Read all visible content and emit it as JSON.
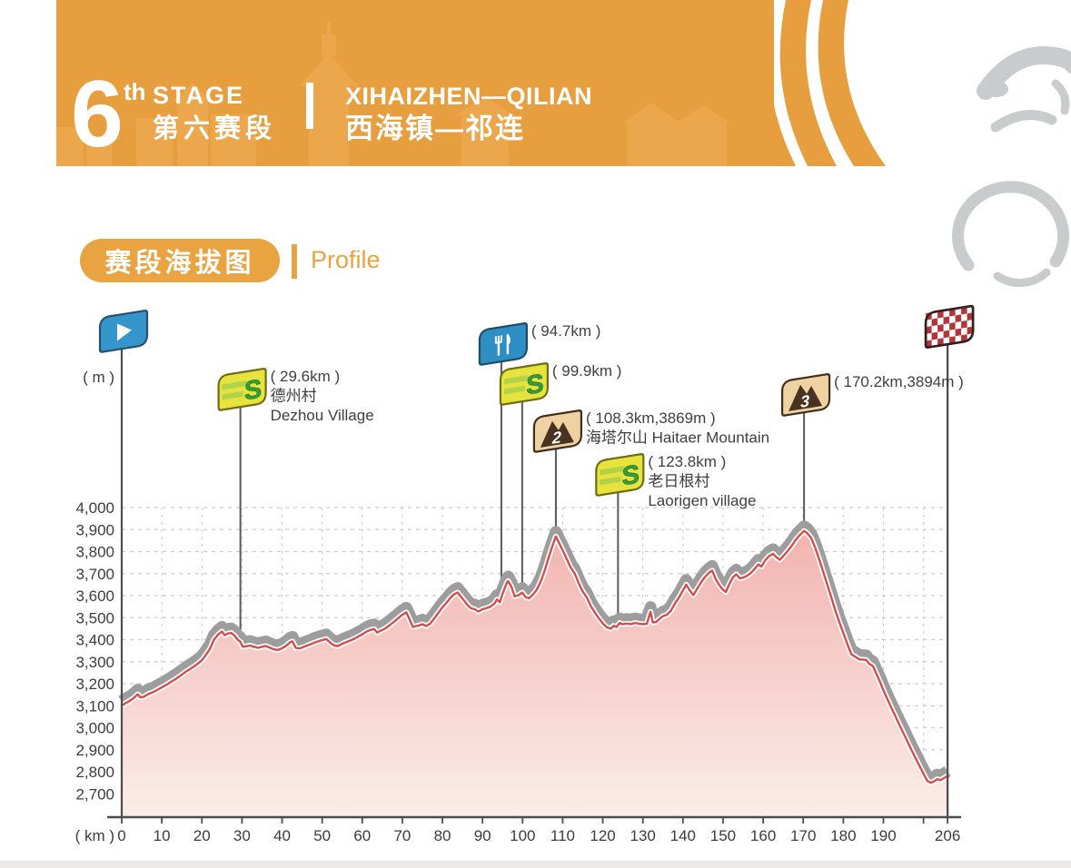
{
  "banner": {
    "stage_number": "6",
    "stage_ordinal_suffix": "th",
    "stage_word": "STAGE",
    "stage_cn": "第六赛段",
    "route_en": "XIHAIZHEN—QILIAN",
    "route_cn": "西海镇—祁连"
  },
  "section_header": {
    "title_cn": "赛段海拔图",
    "title_en": "Profile"
  },
  "chart_data": {
    "type": "area",
    "xlabel": "( km )",
    "ylabel": "( m )",
    "xlim": [
      0,
      206
    ],
    "ylim": [
      2700,
      4000
    ],
    "grid": "dashed",
    "x_tick_labels": [
      "0",
      "10",
      "20",
      "30",
      "40",
      "50",
      "60",
      "70",
      "80",
      "90",
      "100",
      "110",
      "120",
      "130",
      "140",
      "150",
      "160",
      "170",
      "180",
      "190",
      "206"
    ],
    "x_tick_values": [
      0,
      10,
      20,
      30,
      40,
      50,
      60,
      70,
      80,
      90,
      100,
      110,
      120,
      130,
      140,
      150,
      160,
      170,
      180,
      190,
      206
    ],
    "y_tick_labels": [
      "4,000",
      "3,900",
      "3,800",
      "3,700",
      "3,600",
      "3,500",
      "3,400",
      "3,300",
      "3,200",
      "3,100",
      "3,000",
      "2,900",
      "2,800",
      "2,700"
    ],
    "y_tick_values": [
      4000,
      3900,
      3800,
      3700,
      3600,
      3500,
      3400,
      3300,
      3200,
      3100,
      3000,
      2900,
      2800,
      2700
    ],
    "series": [
      {
        "name": "elevation_m",
        "points": [
          [
            0,
            3100
          ],
          [
            1,
            3112
          ],
          [
            2,
            3122
          ],
          [
            3,
            3135
          ],
          [
            4,
            3152
          ],
          [
            4.6,
            3138
          ],
          [
            5.5,
            3140
          ],
          [
            6.5,
            3152
          ],
          [
            8,
            3163
          ],
          [
            9,
            3173
          ],
          [
            10,
            3183
          ],
          [
            11,
            3193
          ],
          [
            12,
            3205
          ],
          [
            13,
            3216
          ],
          [
            14,
            3228
          ],
          [
            15,
            3241
          ],
          [
            16,
            3255
          ],
          [
            17,
            3266
          ],
          [
            18,
            3278
          ],
          [
            19,
            3291
          ],
          [
            20,
            3307
          ],
          [
            21,
            3331
          ],
          [
            22,
            3358
          ],
          [
            23,
            3400
          ],
          [
            24,
            3422
          ],
          [
            25,
            3437
          ],
          [
            25.7,
            3420
          ],
          [
            26.5,
            3428
          ],
          [
            27.3,
            3430
          ],
          [
            28,
            3421
          ],
          [
            29,
            3398
          ],
          [
            29.6,
            3390
          ],
          [
            30.2,
            3368
          ],
          [
            31,
            3370
          ],
          [
            32,
            3373
          ],
          [
            33,
            3368
          ],
          [
            34,
            3363
          ],
          [
            35,
            3368
          ],
          [
            36,
            3371
          ],
          [
            37,
            3363
          ],
          [
            38,
            3356
          ],
          [
            39,
            3353
          ],
          [
            40,
            3361
          ],
          [
            41,
            3372
          ],
          [
            42,
            3388
          ],
          [
            42.6,
            3392
          ],
          [
            43.4,
            3363
          ],
          [
            44.4,
            3360
          ],
          [
            45.5,
            3368
          ],
          [
            47,
            3378
          ],
          [
            48,
            3386
          ],
          [
            49,
            3392
          ],
          [
            50,
            3398
          ],
          [
            51,
            3403
          ],
          [
            52,
            3386
          ],
          [
            53,
            3373
          ],
          [
            54,
            3371
          ],
          [
            55,
            3381
          ],
          [
            56,
            3389
          ],
          [
            57,
            3396
          ],
          [
            58,
            3404
          ],
          [
            59,
            3414
          ],
          [
            60,
            3424
          ],
          [
            61,
            3436
          ],
          [
            62,
            3444
          ],
          [
            63,
            3448
          ],
          [
            63.7,
            3432
          ],
          [
            65,
            3444
          ],
          [
            66,
            3454
          ],
          [
            67,
            3468
          ],
          [
            68,
            3483
          ],
          [
            69,
            3498
          ],
          [
            70,
            3513
          ],
          [
            71,
            3524
          ],
          [
            71.8,
            3492
          ],
          [
            72.6,
            3458
          ],
          [
            74,
            3464
          ],
          [
            75,
            3470
          ],
          [
            76,
            3462
          ],
          [
            77,
            3474
          ],
          [
            78,
            3497
          ],
          [
            79,
            3522
          ],
          [
            80,
            3547
          ],
          [
            81,
            3567
          ],
          [
            82,
            3590
          ],
          [
            83,
            3607
          ],
          [
            83.8,
            3614
          ],
          [
            85,
            3587
          ],
          [
            86,
            3563
          ],
          [
            87,
            3544
          ],
          [
            88,
            3538
          ],
          [
            89,
            3528
          ],
          [
            90,
            3538
          ],
          [
            91,
            3543
          ],
          [
            92,
            3550
          ],
          [
            93,
            3564
          ],
          [
            93.6,
            3582
          ],
          [
            94.3,
            3570
          ],
          [
            95,
            3608
          ],
          [
            96,
            3656
          ],
          [
            96.4,
            3666
          ],
          [
            97.2,
            3640
          ],
          [
            98,
            3597
          ],
          [
            99,
            3602
          ],
          [
            99.9,
            3614
          ],
          [
            100.8,
            3592
          ],
          [
            101.6,
            3588
          ],
          [
            102.5,
            3603
          ],
          [
            103.5,
            3626
          ],
          [
            104.5,
            3663
          ],
          [
            105.5,
            3713
          ],
          [
            106.5,
            3773
          ],
          [
            107.3,
            3818
          ],
          [
            108.3,
            3869
          ],
          [
            109,
            3843
          ],
          [
            110,
            3806
          ],
          [
            111,
            3766
          ],
          [
            112,
            3727
          ],
          [
            113,
            3700
          ],
          [
            114,
            3656
          ],
          [
            115,
            3618
          ],
          [
            116,
            3592
          ],
          [
            117,
            3553
          ],
          [
            118,
            3524
          ],
          [
            119,
            3497
          ],
          [
            120,
            3474
          ],
          [
            121,
            3456
          ],
          [
            122,
            3450
          ],
          [
            122.7,
            3463
          ],
          [
            123.4,
            3457
          ],
          [
            124.2,
            3476
          ],
          [
            125,
            3470
          ],
          [
            126,
            3473
          ],
          [
            127,
            3470
          ],
          [
            128,
            3476
          ],
          [
            129,
            3472
          ],
          [
            130,
            3470
          ],
          [
            131,
            3472
          ],
          [
            131.9,
            3527
          ],
          [
            132.5,
            3478
          ],
          [
            133.3,
            3480
          ],
          [
            134,
            3492
          ],
          [
            135,
            3507
          ],
          [
            136,
            3513
          ],
          [
            137,
            3532
          ],
          [
            138,
            3564
          ],
          [
            139,
            3591
          ],
          [
            140,
            3624
          ],
          [
            140.8,
            3650
          ],
          [
            141.7,
            3624
          ],
          [
            142.6,
            3602
          ],
          [
            143.5,
            3630
          ],
          [
            144.5,
            3660
          ],
          [
            145.5,
            3685
          ],
          [
            146.5,
            3704
          ],
          [
            147.3,
            3714
          ],
          [
            148.2,
            3674
          ],
          [
            149,
            3649
          ],
          [
            150,
            3626
          ],
          [
            150.7,
            3617
          ],
          [
            151.5,
            3650
          ],
          [
            152.5,
            3684
          ],
          [
            153.3,
            3697
          ],
          [
            154.2,
            3678
          ],
          [
            155,
            3682
          ],
          [
            156,
            3690
          ],
          [
            157,
            3704
          ],
          [
            158,
            3724
          ],
          [
            158.8,
            3742
          ],
          [
            159.6,
            3732
          ],
          [
            160.5,
            3760
          ],
          [
            161.5,
            3780
          ],
          [
            162.5,
            3790
          ],
          [
            163.3,
            3774
          ],
          [
            164.2,
            3763
          ],
          [
            165,
            3780
          ],
          [
            166,
            3800
          ],
          [
            167,
            3823
          ],
          [
            168,
            3850
          ],
          [
            169,
            3872
          ],
          [
            170.2,
            3894
          ],
          [
            171,
            3884
          ],
          [
            172,
            3861
          ],
          [
            173,
            3816
          ],
          [
            174,
            3764
          ],
          [
            175,
            3707
          ],
          [
            176,
            3650
          ],
          [
            177,
            3592
          ],
          [
            178,
            3534
          ],
          [
            179,
            3480
          ],
          [
            180,
            3430
          ],
          [
            181,
            3380
          ],
          [
            182,
            3334
          ],
          [
            183,
            3322
          ],
          [
            184,
            3310
          ],
          [
            185.7,
            3308
          ],
          [
            186.5,
            3290
          ],
          [
            187.4,
            3280
          ],
          [
            188.3,
            3243
          ],
          [
            189.2,
            3206
          ],
          [
            190,
            3170
          ],
          [
            191,
            3130
          ],
          [
            192,
            3090
          ],
          [
            193,
            3052
          ],
          [
            194,
            3013
          ],
          [
            195,
            2975
          ],
          [
            196,
            2937
          ],
          [
            197,
            2899
          ],
          [
            198,
            2863
          ],
          [
            199,
            2827
          ],
          [
            200,
            2791
          ],
          [
            201,
            2758
          ],
          [
            201.8,
            2750
          ],
          [
            202.6,
            2756
          ],
          [
            203.4,
            2766
          ],
          [
            204.2,
            2762
          ],
          [
            205,
            2770
          ],
          [
            206,
            2782
          ]
        ]
      }
    ],
    "markers": [
      {
        "id": "start",
        "type": "start",
        "km": 0,
        "icon": "play-flag",
        "label_lines": []
      },
      {
        "id": "sprint-1",
        "type": "sprint",
        "km": 29.6,
        "icon": "sprint-flag",
        "label_lines": [
          "( 29.6km )",
          "德州村",
          "Dezhou Village"
        ]
      },
      {
        "id": "feed-zone",
        "type": "feed",
        "km": 94.7,
        "icon": "fork-knife-flag",
        "label_lines": [
          "( 94.7km )"
        ]
      },
      {
        "id": "sprint-2",
        "type": "sprint",
        "km": 99.9,
        "icon": "sprint-flag",
        "label_lines": [
          "( 99.9km )"
        ]
      },
      {
        "id": "climb-cat2",
        "type": "climb",
        "category": "2",
        "km": 108.3,
        "elevation_m": 3869,
        "icon": "mountain-flag",
        "label_lines": [
          "( 108.3km,3869m )",
          "海塔尔山 Haitaer Mountain"
        ]
      },
      {
        "id": "sprint-3",
        "type": "sprint",
        "km": 123.8,
        "icon": "sprint-flag",
        "label_lines": [
          "( 123.8km )",
          "老日根村",
          "Laorigen village"
        ]
      },
      {
        "id": "climb-cat3",
        "type": "climb",
        "category": "3",
        "km": 170.2,
        "elevation_m": 3894,
        "icon": "mountain-flag",
        "label_lines": [
          "( 170.2km,3894m )"
        ]
      },
      {
        "id": "finish",
        "type": "finish",
        "km": 206,
        "icon": "checkered-flag",
        "label_lines": []
      }
    ],
    "colors": {
      "banner_orange": "#E79E3E",
      "accent_orange": "#E9A340",
      "watermark_orange": "#F2AF58",
      "cyclist_gray": "#C9CCCD",
      "axis": "#4D4D4D",
      "grid": "#CBCBCB",
      "tick_text": "#3C3C3C",
      "label_text": "#3F3F3F",
      "profile_line": "#D64C4C",
      "profile_casing": "#FFFFFF",
      "profile_shadow": "#9D9D9D",
      "fill_top": "#F1AFAA",
      "fill_bottom": "#FBEDE9",
      "stem": "#5A5A5A",
      "start_flag_fill": "#3596CC",
      "start_flag_border": "#29506B",
      "feed_flag_fill": "#2E8FC4",
      "feed_flag_border": "#1F4C66",
      "sprint_flag_fill": "#E6E23E",
      "sprint_flag_border": "#6E6D15",
      "sprint_stripe": "#B2D348",
      "sprint_letter": "#2FA23C",
      "sprint_letter_edge": "#1C6222",
      "climb_flag_fill": "#EFD2A2",
      "climb_flag_border": "#402C1D",
      "climb_glyph": "#4A3122",
      "climb_number": "#FFFFFF",
      "finish_red": "#B5343A",
      "finish_border": "#30211D"
    }
  }
}
